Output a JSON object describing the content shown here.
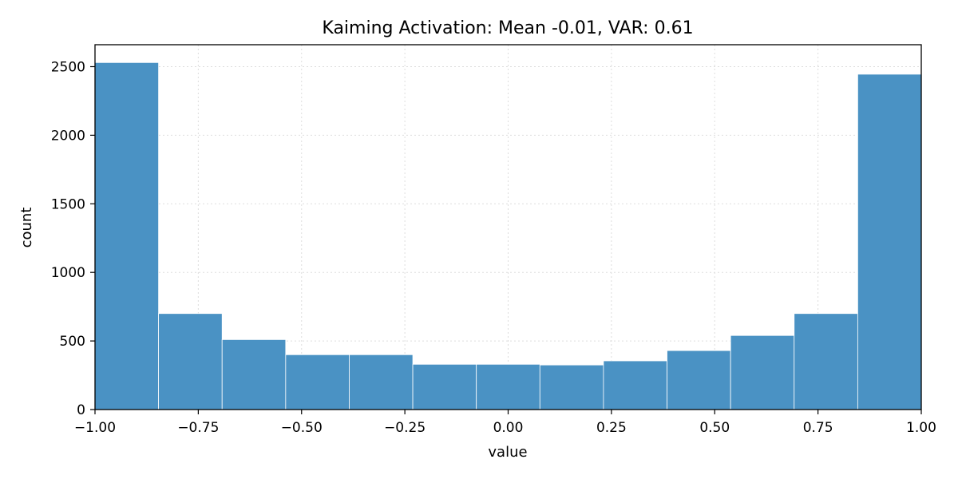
{
  "chart_data": {
    "type": "bar",
    "title": "Kaiming Activation: Mean -0.01, VAR: 0.61",
    "xlabel": "value",
    "ylabel": "count",
    "xlim": [
      -1.0,
      1.0
    ],
    "ylim": [
      0,
      2660
    ],
    "grid": true,
    "bin_edges": [
      -1.0,
      -0.846154,
      -0.692308,
      -0.538462,
      -0.384615,
      -0.230769,
      -0.076923,
      0.076923,
      0.230769,
      0.384615,
      0.538462,
      0.692308,
      0.846154,
      1.0
    ],
    "values": [
      2530,
      700,
      510,
      400,
      400,
      330,
      330,
      325,
      355,
      430,
      540,
      700,
      2445
    ],
    "x_ticks": [
      -1.0,
      -0.75,
      -0.5,
      -0.25,
      0.0,
      0.25,
      0.5,
      0.75,
      1.0
    ],
    "x_tick_labels": [
      "−1.00",
      "−0.75",
      "−0.50",
      "−0.25",
      "0.00",
      "0.25",
      "0.50",
      "0.75",
      "1.00"
    ],
    "y_ticks": [
      0,
      500,
      1000,
      1500,
      2000,
      2500
    ],
    "y_tick_labels": [
      "0",
      "500",
      "1000",
      "1500",
      "2000",
      "2500"
    ],
    "bar_color": "#4a92c4"
  }
}
